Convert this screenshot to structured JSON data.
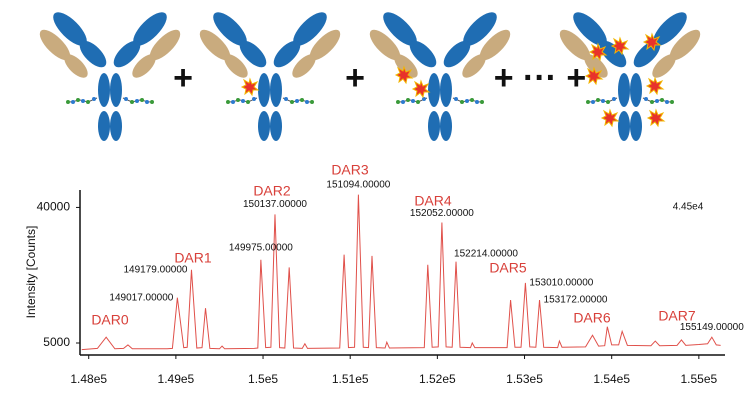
{
  "illustration": {
    "operators": [
      "+",
      "+",
      "+ ··· +"
    ]
  },
  "chart_data": {
    "type": "line",
    "y_label": "Intensity [Counts]",
    "annotation": "4.45e4",
    "xlim": [
      147900,
      155300
    ],
    "ylim": [
      1900,
      44500
    ],
    "xticks": [
      {
        "value": 148000,
        "label": "1.48e5"
      },
      {
        "value": 149000,
        "label": "1.49e5"
      },
      {
        "value": 150000,
        "label": "1.5e5"
      },
      {
        "value": 151000,
        "label": "1.51e5"
      },
      {
        "value": 152000,
        "label": "1.52e5"
      },
      {
        "value": 153000,
        "label": "1.53e5"
      },
      {
        "value": 154000,
        "label": "1.54e5"
      },
      {
        "value": 155000,
        "label": "1.55e5"
      }
    ],
    "yticks": [
      5000,
      40000
    ],
    "series": [
      {
        "color": "#e0504a",
        "x": [
          147920,
          148100,
          148200,
          148300,
          148400,
          148450,
          148500,
          148900,
          148960,
          149017,
          149090,
          149130,
          149179,
          149240,
          149300,
          149340,
          149390,
          149500,
          149530,
          149560,
          149900,
          149940,
          149975,
          150030,
          150090,
          150137,
          150190,
          150250,
          150300,
          150350,
          150450,
          150480,
          150510,
          150880,
          150930,
          150980,
          151050,
          151094,
          151150,
          151210,
          151250,
          151300,
          151400,
          151420,
          151450,
          151850,
          151890,
          151940,
          152010,
          152052,
          152100,
          152170,
          152214,
          152260,
          152380,
          152400,
          152430,
          152800,
          152840,
          152890,
          152960,
          153010,
          153060,
          153130,
          153172,
          153220,
          153380,
          153400,
          153430,
          153700,
          153780,
          153850,
          153920,
          153950,
          154000,
          154080,
          154120,
          154180,
          154450,
          154500,
          154550,
          154750,
          154800,
          154850,
          155000,
          155100,
          155149,
          155200,
          155250
        ],
        "values": [
          3300,
          3600,
          6500,
          3500,
          3600,
          4500,
          3500,
          3500,
          3600,
          16700,
          3800,
          3900,
          23900,
          3700,
          3800,
          14000,
          3600,
          3500,
          4200,
          3500,
          3600,
          3700,
          26500,
          3800,
          3900,
          38200,
          3800,
          3700,
          24500,
          3700,
          3600,
          4800,
          3600,
          3700,
          27800,
          3800,
          3900,
          43300,
          3900,
          3800,
          27500,
          3800,
          3700,
          5200,
          3700,
          3800,
          25200,
          3900,
          4000,
          36100,
          4000,
          3900,
          26000,
          3900,
          3800,
          5000,
          3800,
          3800,
          16100,
          3900,
          3900,
          20500,
          4000,
          3900,
          16100,
          3900,
          3800,
          5500,
          3900,
          4000,
          7000,
          4200,
          4300,
          9200,
          4500,
          4500,
          8000,
          4400,
          4300,
          5500,
          4300,
          4400,
          5800,
          4400,
          4600,
          4800,
          6500,
          4500,
          4400
        ]
      }
    ],
    "peak_labels": [
      {
        "value": 149017,
        "label": "149017.00000"
      },
      {
        "value": 149179,
        "label": "149179.00000"
      },
      {
        "value": 149975,
        "label": "149975.00000"
      },
      {
        "value": 150137,
        "label": "150137.00000"
      },
      {
        "value": 151094,
        "label": "151094.00000"
      },
      {
        "value": 152052,
        "label": "152052.00000"
      },
      {
        "value": 152214,
        "label": "152214.00000"
      },
      {
        "value": 153010,
        "label": "153010.00000"
      },
      {
        "value": 153172,
        "label": "153172.00000"
      },
      {
        "value": 155149,
        "label": "155149.00000"
      }
    ],
    "dar_labels": [
      "DAR0",
      "DAR1",
      "DAR2",
      "DAR3",
      "DAR4",
      "DAR5",
      "DAR6",
      "DAR7"
    ]
  }
}
